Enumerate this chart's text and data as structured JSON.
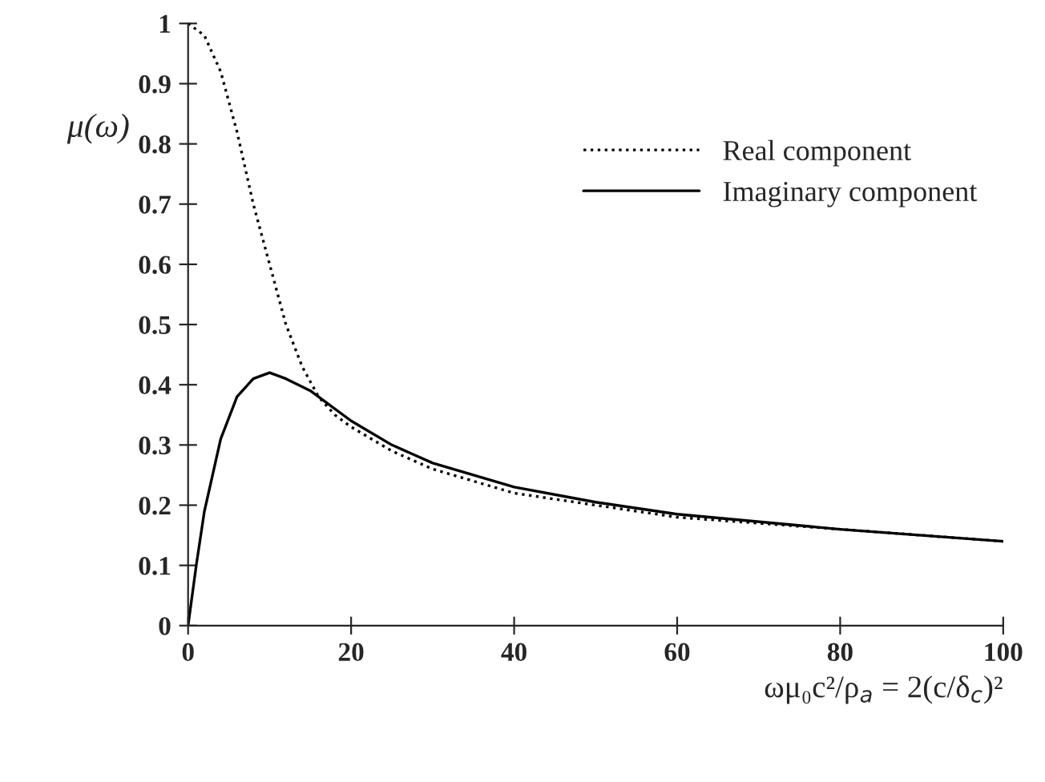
{
  "chart_data": {
    "type": "line",
    "xlabel": "ωμ₀c²/ρ$_{a}$ = 2(c/δ$_{c}$)²",
    "ylabel": "μ(ω)",
    "xlim": [
      0,
      100
    ],
    "ylim": [
      0,
      1
    ],
    "xticks": [
      0,
      20,
      40,
      60,
      80,
      100
    ],
    "yticks": [
      0,
      0.1,
      0.2,
      0.3,
      0.4,
      0.5,
      0.6,
      0.7,
      0.8,
      0.9,
      1
    ],
    "grid": false,
    "legend": "top right",
    "marker": "none",
    "series": [
      {
        "name": "Real component",
        "color": "#000000",
        "line_style": "dotted",
        "x": [
          0,
          2,
          4,
          6,
          8,
          10,
          12,
          14,
          16,
          18,
          20,
          25,
          30,
          40,
          50,
          60,
          80,
          100
        ],
        "values": [
          1,
          0.98,
          0.92,
          0.82,
          0.7,
          0.6,
          0.5,
          0.43,
          0.38,
          0.35,
          0.33,
          0.29,
          0.26,
          0.22,
          0.2,
          0.18,
          0.16,
          0.14
        ]
      },
      {
        "name": "Imaginary component",
        "color": "#000000",
        "line_style": "solid",
        "x": [
          0,
          1,
          2,
          4,
          6,
          8,
          10,
          12,
          15,
          20,
          25,
          30,
          40,
          50,
          60,
          80,
          100
        ],
        "values": [
          0,
          0.1,
          0.19,
          0.31,
          0.38,
          0.41,
          0.42,
          0.41,
          0.39,
          0.34,
          0.3,
          0.27,
          0.23,
          0.205,
          0.185,
          0.16,
          0.14
        ]
      }
    ]
  }
}
